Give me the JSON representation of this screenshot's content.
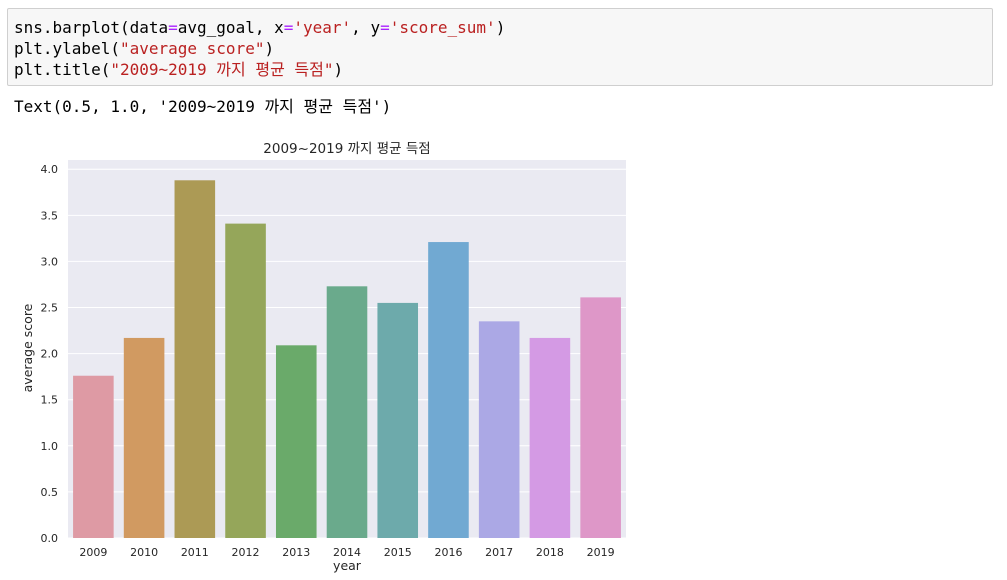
{
  "code_cell": {
    "lines": [
      "sns.barplot(data=avg_goal, x='year', y='score_sum')",
      "plt.ylabel(\"average score\")",
      "plt.title(\"2009~2019 까지 평균 득점\")"
    ],
    "line1": {
      "a": "sns.barplot(data",
      "eq1": "=",
      "b": "avg_goal, x",
      "eq2": "=",
      "s1": "'year'",
      "c": ", y",
      "eq3": "=",
      "s2": "'score_sum'",
      "d": ")"
    },
    "line2": {
      "a": "plt.ylabel(",
      "s": "\"average score\"",
      "b": ")"
    },
    "line3": {
      "a": "plt.title(",
      "s": "\"2009~2019 까지 평균 득점\"",
      "b": ")"
    }
  },
  "output_text": "Text(0.5, 1.0, '2009~2019 까지 평균 득점')",
  "colors": {
    "plot_bg": "#eaeaf2",
    "grid": "#ffffff",
    "bars": [
      "#de9aa4",
      "#d19a61",
      "#ac9a55",
      "#95a65a",
      "#6aaa6a",
      "#6aaa8c",
      "#6daaab",
      "#71a9d2",
      "#aba8e5",
      "#d49ae4",
      "#de97c8"
    ]
  },
  "chart_data": {
    "type": "bar",
    "title": "2009~2019 까지 평균 득점",
    "xlabel": "year",
    "ylabel": "average score",
    "categories": [
      "2009",
      "2010",
      "2011",
      "2012",
      "2013",
      "2014",
      "2015",
      "2016",
      "2017",
      "2018",
      "2019"
    ],
    "values": [
      1.76,
      2.17,
      3.88,
      3.41,
      2.09,
      2.73,
      2.55,
      3.21,
      2.35,
      2.17,
      2.61
    ],
    "ylim": [
      0,
      4.1
    ],
    "yticks": [
      "0.0",
      "0.5",
      "1.0",
      "1.5",
      "2.0",
      "2.5",
      "3.0",
      "3.5",
      "4.0"
    ],
    "ytick_values": [
      0,
      0.5,
      1.0,
      1.5,
      2.0,
      2.5,
      3.0,
      3.5,
      4.0
    ],
    "grid": true
  }
}
